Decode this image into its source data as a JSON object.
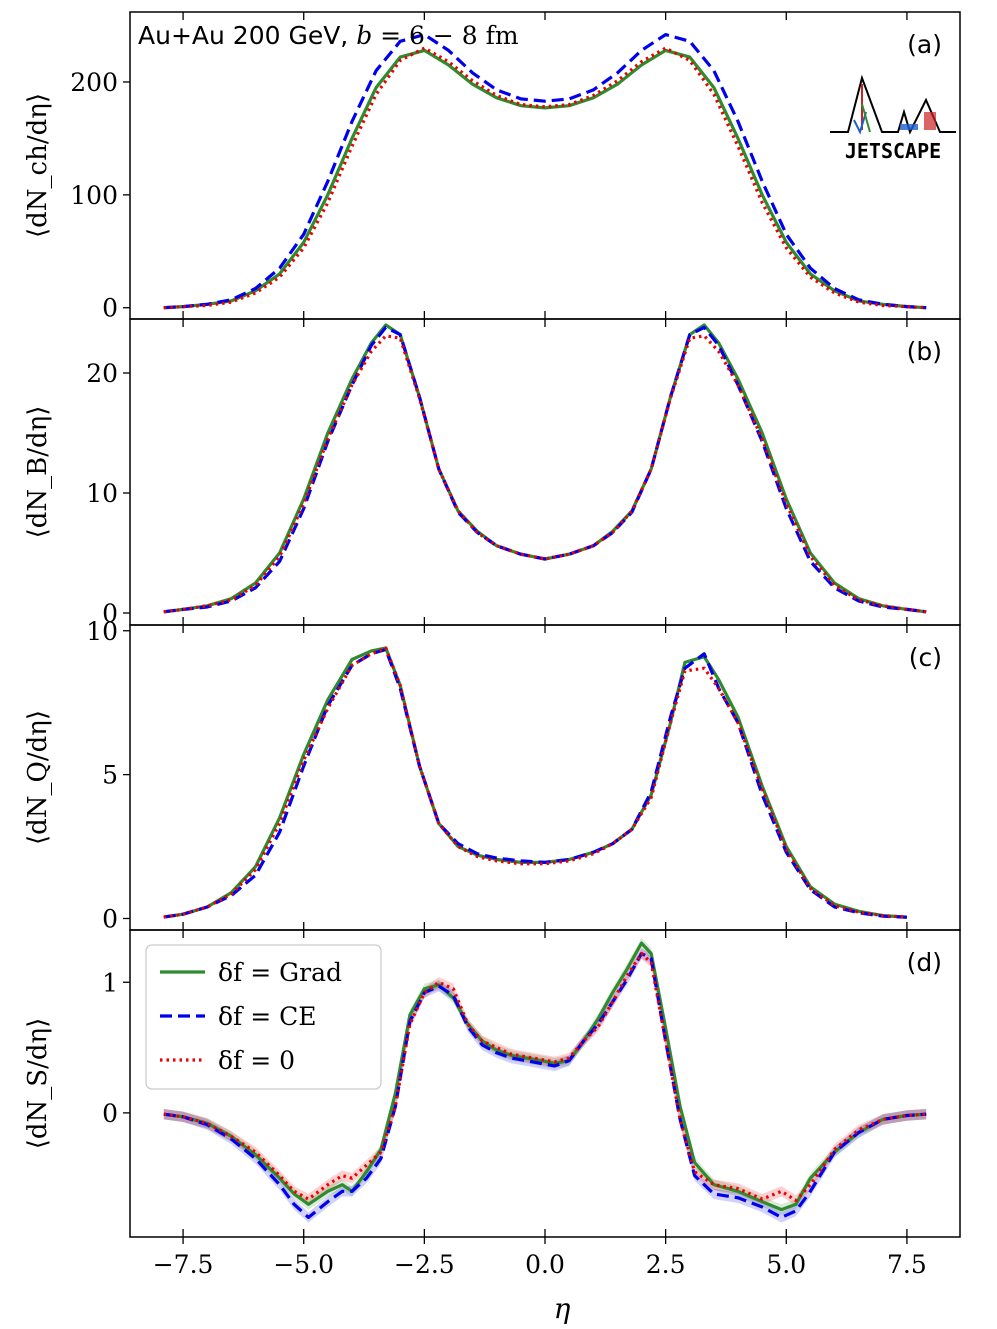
{
  "chart_data": {
    "type": "line",
    "title": "Au+Au 200 GeV, b = 6 − 8 fm",
    "title_main": "Au+Au 200 GeV, ",
    "title_b": "b",
    "title_rest": " = 6 − 8 fm",
    "xlabel": "η",
    "xlim": [
      -8.6,
      8.6
    ],
    "xticks": [
      -7.5,
      -5.0,
      -2.5,
      0.0,
      2.5,
      5.0,
      7.5
    ],
    "xtick_labels": [
      "−7.5",
      "−5.0",
      "−2.5",
      "0.0",
      "2.5",
      "5.0",
      "7.5"
    ],
    "logo_text": "JETSCAPE",
    "legend": {
      "placement": "upper-left of panel (d)",
      "entries": [
        {
          "name": "δf = Grad",
          "color": "#2e8b2e",
          "style": "solid"
        },
        {
          "name": "δf = CE",
          "color": "#0000ee",
          "style": "dashed"
        },
        {
          "name": "δf = 0",
          "color": "#ee0000",
          "style": "dotted"
        }
      ]
    },
    "panels": [
      {
        "tag": "(a)",
        "ylabel": "⟨dN_ch/dη⟩",
        "ylim": [
          -10,
          262
        ],
        "yticks": [
          0,
          100,
          200
        ],
        "ytick_labels": [
          "0",
          "100",
          "200"
        ],
        "x": [
          -7.9,
          -7.5,
          -7.0,
          -6.5,
          -6.0,
          -5.5,
          -5.0,
          -4.5,
          -4.0,
          -3.5,
          -3.0,
          -2.5,
          -2.0,
          -1.5,
          -1.0,
          -0.5,
          0.0,
          0.5,
          1.0,
          1.5,
          2.0,
          2.5,
          3.0,
          3.5,
          4.0,
          4.5,
          5.0,
          5.5,
          6.0,
          6.5,
          7.0,
          7.5,
          7.9
        ],
        "series": [
          {
            "name": "Grad",
            "values": [
              0,
              1,
              3,
              6,
              15,
              30,
              58,
              100,
              150,
              195,
              222,
              228,
              215,
              198,
              186,
              179,
              177,
              179,
              186,
              198,
              215,
              228,
              222,
              195,
              150,
              100,
              58,
              30,
              15,
              6,
              3,
              1,
              0
            ]
          },
          {
            "name": "CE",
            "values": [
              0,
              1,
              3,
              7,
              17,
              35,
              65,
              112,
              165,
              210,
              236,
              242,
              228,
              208,
              193,
              185,
              183,
              185,
              193,
              208,
              228,
              242,
              236,
              210,
              165,
              112,
              65,
              35,
              17,
              7,
              3,
              1,
              0
            ]
          },
          {
            "name": "0",
            "values": [
              0,
              1,
              2,
              5,
              13,
              27,
              53,
              93,
              143,
              189,
              219,
              230,
              218,
              201,
              188,
              180,
              178,
              180,
              188,
              201,
              218,
              230,
              219,
              189,
              143,
              93,
              53,
              27,
              13,
              5,
              2,
              1,
              0
            ]
          }
        ]
      },
      {
        "tag": "(b)",
        "ylabel": "⟨dN_B/dη⟩",
        "ylim": [
          -1,
          24.5
        ],
        "yticks": [
          0,
          10,
          20
        ],
        "ytick_labels": [
          "0",
          "10",
          "20"
        ],
        "x": [
          -7.9,
          -7.5,
          -7.0,
          -6.5,
          -6.0,
          -5.5,
          -5.0,
          -4.5,
          -4.0,
          -3.6,
          -3.3,
          -3.0,
          -2.6,
          -2.2,
          -1.8,
          -1.4,
          -1.0,
          -0.5,
          0.0,
          0.5,
          1.0,
          1.4,
          1.8,
          2.2,
          2.6,
          3.0,
          3.3,
          3.6,
          4.0,
          4.5,
          5.0,
          5.5,
          6.0,
          6.5,
          7.0,
          7.5,
          7.9
        ],
        "series": [
          {
            "name": "Grad",
            "values": [
              0.1,
              0.3,
              0.6,
              1.2,
              2.5,
              5.0,
              9.5,
              15.0,
              19.5,
              22.5,
              24.0,
              23.2,
              18.0,
              12.0,
              8.5,
              6.8,
              5.6,
              4.9,
              4.5,
              4.9,
              5.6,
              6.8,
              8.5,
              12.0,
              18.0,
              23.2,
              24.0,
              22.5,
              19.5,
              15.0,
              9.5,
              5.0,
              2.5,
              1.2,
              0.6,
              0.3,
              0.1
            ]
          },
          {
            "name": "CE",
            "values": [
              0.1,
              0.3,
              0.5,
              1.0,
              2.1,
              4.3,
              8.7,
              14.3,
              19.0,
              22.3,
              23.8,
              23.2,
              18.0,
              12.0,
              8.4,
              6.7,
              5.6,
              4.9,
              4.5,
              4.9,
              5.6,
              6.7,
              8.4,
              12.0,
              18.0,
              23.2,
              23.8,
              22.3,
              19.0,
              14.3,
              8.7,
              4.3,
              2.1,
              1.0,
              0.5,
              0.3,
              0.1
            ]
          },
          {
            "name": "0",
            "values": [
              0.1,
              0.3,
              0.6,
              1.1,
              2.3,
              4.7,
              9.1,
              14.5,
              19.0,
              21.8,
              23.1,
              22.9,
              17.9,
              12.0,
              8.5,
              6.7,
              5.6,
              4.9,
              4.5,
              4.9,
              5.6,
              6.7,
              8.5,
              12.0,
              17.9,
              22.9,
              23.1,
              21.8,
              19.0,
              14.5,
              9.1,
              4.7,
              2.3,
              1.1,
              0.6,
              0.3,
              0.1
            ]
          }
        ]
      },
      {
        "tag": "(c)",
        "ylabel": "⟨dN_Q/dη⟩",
        "ylim": [
          -0.4,
          10.2
        ],
        "yticks": [
          0,
          5,
          10
        ],
        "ytick_labels": [
          "0",
          "5",
          "10"
        ],
        "x": [
          -7.9,
          -7.5,
          -7.0,
          -6.5,
          -6.0,
          -5.5,
          -5.0,
          -4.5,
          -4.0,
          -3.6,
          -3.3,
          -3.0,
          -2.6,
          -2.2,
          -1.8,
          -1.4,
          -1.0,
          -0.5,
          0.0,
          0.5,
          1.0,
          1.4,
          1.8,
          2.2,
          2.6,
          2.9,
          3.3,
          3.6,
          4.0,
          4.5,
          5.0,
          5.5,
          6.0,
          6.5,
          7.0,
          7.5
        ],
        "series": [
          {
            "name": "Grad",
            "values": [
              0.05,
              0.15,
              0.4,
              0.9,
              1.8,
              3.5,
              5.7,
              7.6,
              9.0,
              9.3,
              9.4,
              8.1,
              5.3,
              3.3,
              2.5,
              2.2,
              2.05,
              1.95,
              1.95,
              2.05,
              2.3,
              2.6,
              3.1,
              4.3,
              6.8,
              8.9,
              9.1,
              8.3,
              7.0,
              4.6,
              2.5,
              1.1,
              0.5,
              0.25,
              0.1,
              0.05
            ]
          },
          {
            "name": "CE",
            "values": [
              0.05,
              0.15,
              0.4,
              0.8,
              1.5,
              3.0,
              5.3,
              7.4,
              8.8,
              9.2,
              9.35,
              8.0,
              5.3,
              3.3,
              2.6,
              2.25,
              2.1,
              2.0,
              1.95,
              2.05,
              2.3,
              2.6,
              3.1,
              4.4,
              7.0,
              8.7,
              9.2,
              8.0,
              6.8,
              4.3,
              2.3,
              1.0,
              0.4,
              0.2,
              0.08,
              0.04
            ]
          },
          {
            "name": "0",
            "values": [
              0.05,
              0.15,
              0.4,
              0.85,
              1.7,
              3.3,
              5.5,
              7.3,
              8.8,
              9.2,
              9.4,
              8.1,
              5.3,
              3.3,
              2.5,
              2.15,
              2.0,
              1.9,
              1.9,
              2.0,
              2.25,
              2.6,
              3.1,
              4.2,
              6.8,
              8.6,
              8.7,
              8.0,
              6.8,
              4.5,
              2.4,
              1.05,
              0.45,
              0.22,
              0.1,
              0.05
            ]
          }
        ]
      },
      {
        "tag": "(d)",
        "ylabel": "⟨dN_S/dη⟩",
        "ylim": [
          -0.95,
          1.4
        ],
        "yticks": [
          0,
          1
        ],
        "ytick_labels": [
          "0",
          "1"
        ],
        "x": [
          -7.9,
          -7.5,
          -7.0,
          -6.5,
          -6.0,
          -5.5,
          -5.2,
          -4.9,
          -4.5,
          -4.2,
          -4.0,
          -3.7,
          -3.4,
          -3.1,
          -2.8,
          -2.5,
          -2.2,
          -1.9,
          -1.6,
          -1.3,
          -1.0,
          -0.7,
          -0.4,
          -0.1,
          0.2,
          0.5,
          0.8,
          1.1,
          1.4,
          1.7,
          2.0,
          2.2,
          2.5,
          2.8,
          3.1,
          3.5,
          4.0,
          4.5,
          4.9,
          5.2,
          5.5,
          6.0,
          6.5,
          7.0,
          7.5,
          7.9
        ],
        "series": [
          {
            "name": "Grad",
            "values": [
              -0.01,
              -0.03,
              -0.08,
              -0.18,
              -0.32,
              -0.5,
              -0.62,
              -0.7,
              -0.6,
              -0.55,
              -0.6,
              -0.45,
              -0.28,
              0.15,
              0.75,
              0.95,
              0.98,
              0.88,
              0.68,
              0.55,
              0.48,
              0.44,
              0.42,
              0.4,
              0.38,
              0.4,
              0.55,
              0.72,
              0.92,
              1.1,
              1.3,
              1.22,
              0.65,
              0.05,
              -0.38,
              -0.55,
              -0.6,
              -0.68,
              -0.74,
              -0.7,
              -0.5,
              -0.3,
              -0.15,
              -0.05,
              -0.02,
              -0.01
            ]
          },
          {
            "name": "CE",
            "values": [
              -0.01,
              -0.03,
              -0.09,
              -0.2,
              -0.35,
              -0.55,
              -0.7,
              -0.8,
              -0.68,
              -0.6,
              -0.6,
              -0.5,
              -0.35,
              0.05,
              0.7,
              0.92,
              0.97,
              0.9,
              0.66,
              0.52,
              0.46,
              0.42,
              0.4,
              0.38,
              0.36,
              0.4,
              0.55,
              0.68,
              0.85,
              1.02,
              1.22,
              1.18,
              0.55,
              -0.05,
              -0.48,
              -0.62,
              -0.65,
              -0.72,
              -0.8,
              -0.75,
              -0.6,
              -0.3,
              -0.15,
              -0.05,
              -0.02,
              -0.01
            ]
          },
          {
            "name": "0",
            "values": [
              -0.01,
              -0.03,
              -0.08,
              -0.18,
              -0.3,
              -0.48,
              -0.6,
              -0.66,
              -0.55,
              -0.48,
              -0.5,
              -0.4,
              -0.3,
              0.05,
              0.68,
              0.92,
              1.0,
              0.95,
              0.68,
              0.55,
              0.5,
              0.45,
              0.43,
              0.41,
              0.39,
              0.42,
              0.55,
              0.66,
              0.85,
              1.05,
              1.22,
              1.15,
              0.55,
              -0.05,
              -0.45,
              -0.55,
              -0.58,
              -0.66,
              -0.6,
              -0.67,
              -0.55,
              -0.28,
              -0.13,
              -0.05,
              -0.02,
              -0.01
            ]
          }
        ]
      }
    ]
  }
}
